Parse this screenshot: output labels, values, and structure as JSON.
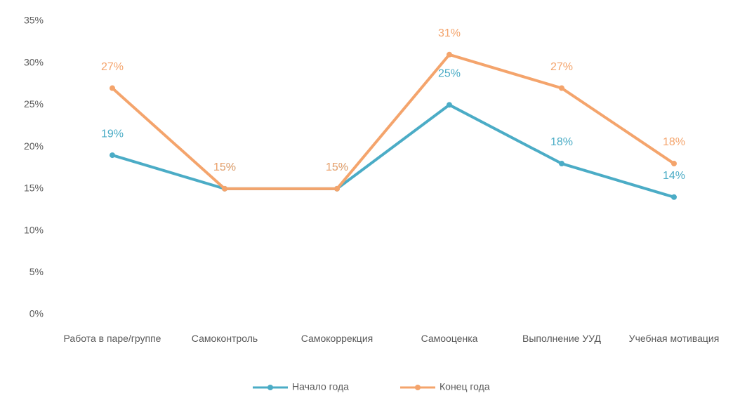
{
  "chart_data": {
    "type": "line",
    "categories": [
      "Работа в паре/группе",
      "Самоконтроль",
      "Самокоррекция",
      "Самооценка",
      "Выполнение УУД",
      "Учебная мотивация"
    ],
    "series": [
      {
        "name": "Начало года",
        "color": "#4bacc6",
        "values": [
          19,
          15,
          15,
          25,
          18,
          14
        ],
        "value_labels": [
          "19%",
          "15%",
          "15%",
          "25%",
          "18%",
          "14%"
        ]
      },
      {
        "name": "Конец года",
        "color": "#f4a46c",
        "values": [
          27,
          15,
          15,
          31,
          27,
          18
        ],
        "value_labels": [
          "27%",
          "15%",
          "15%",
          "31%",
          "27%",
          "18%"
        ]
      }
    ],
    "ylim": [
      0,
      35
    ],
    "yticks": [
      {
        "value": 0,
        "label": "0%"
      },
      {
        "value": 5,
        "label": "5%"
      },
      {
        "value": 10,
        "label": "10%"
      },
      {
        "value": 15,
        "label": "15%"
      },
      {
        "value": 20,
        "label": "20%"
      },
      {
        "value": 25,
        "label": "25%"
      },
      {
        "value": 30,
        "label": "30%"
      },
      {
        "value": 35,
        "label": "35%"
      }
    ],
    "grid": false,
    "legend": "bottom"
  }
}
